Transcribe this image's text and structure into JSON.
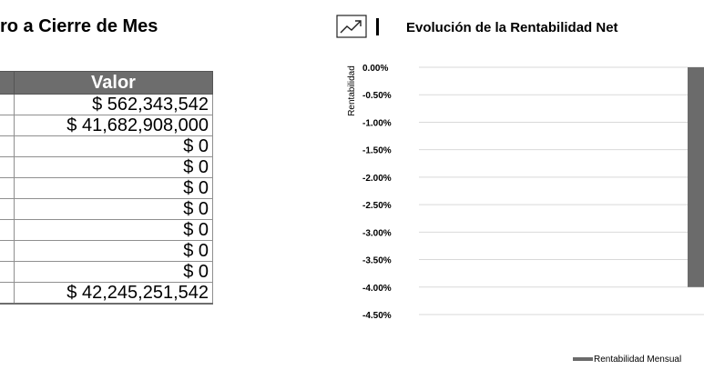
{
  "left_panel": {
    "title": "ro a Cierre de Mes",
    "table": {
      "header": "Valor",
      "values": [
        "$ 562,343,542",
        "$ 41,682,908,000",
        "$ 0",
        "$ 0",
        "$ 0",
        "$ 0",
        "$ 0",
        "$ 0",
        "$ 0",
        "$ 42,245,251,542"
      ]
    }
  },
  "right_panel": {
    "icon": "trending-up-icon",
    "title": "Evolución de la Rentabilidad Net"
  },
  "chart_data": {
    "type": "bar",
    "ylabel": "Rentabilidad",
    "ylim": [
      -4.5,
      0
    ],
    "y_ticks": [
      "0.00%",
      "-0.50%",
      "-1.00%",
      "-1.50%",
      "-2.00%",
      "-2.50%",
      "-3.00%",
      "-3.50%",
      "-4.00%",
      "-4.50%"
    ],
    "series": [
      {
        "name": "Rentabilidad Mensual",
        "color": "#6b6b6b",
        "values": [
          -4.0
        ]
      }
    ],
    "grid": true,
    "legend": "bottom"
  }
}
